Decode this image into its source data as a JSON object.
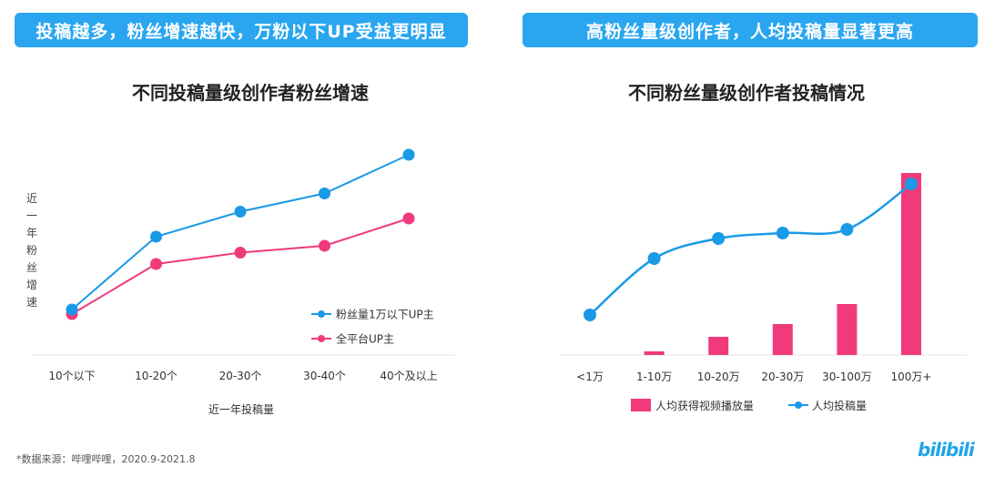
{
  "banners": {
    "left": "投稿越多，粉丝增速越快，万粉以下UP受益更明显",
    "right": "高粉丝量级创作者，人均投稿量显著更高"
  },
  "footnote": "*数据来源：哔哩哔哩，2020.9-2021.8",
  "logo": "bilibili",
  "colors": {
    "blue": "#1a9ae6",
    "pink": "#f03a7c",
    "banner": "#2aa6f0"
  },
  "chart_data": [
    {
      "type": "line",
      "title": "不同投稿量级创作者粉丝增速",
      "xlabel": "近一年投稿量",
      "ylabel": "近一年粉丝增速",
      "categories": [
        "10个以下",
        "10-20个",
        "20-30个",
        "30-40个",
        "40个及以上"
      ],
      "series": [
        {
          "name": "粉丝量1万以下UP主",
          "color": "#1a9ae6",
          "values": [
            20,
            52,
            63,
            71,
            88
          ]
        },
        {
          "name": "全平台UP主",
          "color": "#f03a7c",
          "values": [
            18,
            40,
            45,
            48,
            60
          ]
        }
      ],
      "ylim": [
        0,
        100
      ],
      "legend": "bottom-right",
      "grid": false
    },
    {
      "type": "bar+line",
      "title": "不同粉丝量级创作者投稿情况",
      "categories": [
        "<1万",
        "1-10万",
        "10-20万",
        "20-30万",
        "30-100万",
        "100万+"
      ],
      "series": [
        {
          "name": "人均获得视频播放量",
          "type": "bar",
          "color": "#f03a7c",
          "values": [
            0,
            2,
            10,
            17,
            28,
            100
          ]
        },
        {
          "name": "人均投稿量",
          "type": "line",
          "color": "#1a9ae6",
          "values": [
            22,
            53,
            64,
            67,
            69,
            94
          ]
        }
      ],
      "ylim": [
        0,
        100
      ],
      "legend": "bottom",
      "grid": false
    }
  ]
}
